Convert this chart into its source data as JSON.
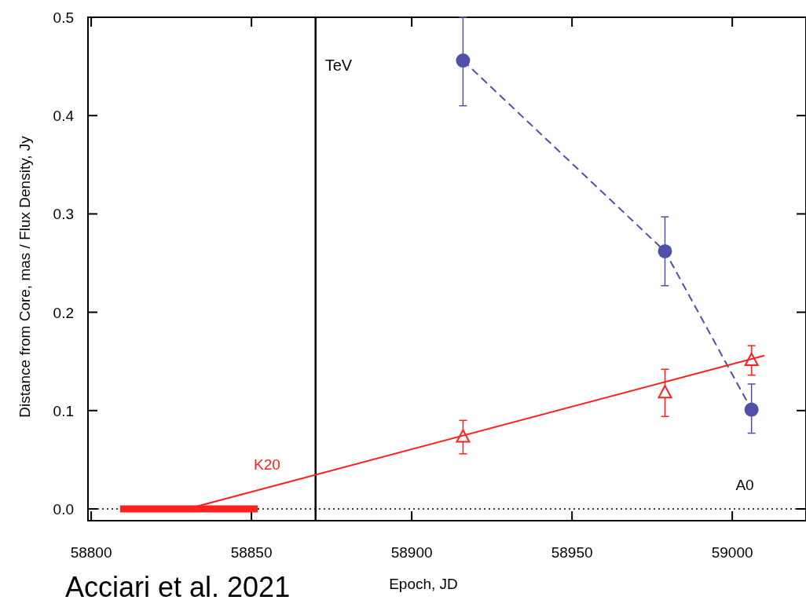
{
  "chart_data": {
    "type": "line",
    "xlabel": "Epoch, JD",
    "ylabel": "Distance from Core, mas / Flux Density, Jy",
    "xlim": [
      58799,
      59023
    ],
    "ylim": [
      -0.012,
      0.5
    ],
    "xticks": [
      58800,
      58850,
      58900,
      58950,
      59000
    ],
    "yticks": [
      {
        "value": 0,
        "label": "0.0"
      },
      {
        "value": 0.1,
        "label": "0.1"
      },
      {
        "value": 0.2,
        "label": "0.2"
      },
      {
        "value": 0.3,
        "label": "0.3"
      },
      {
        "value": 0.4,
        "label": "0.4"
      },
      {
        "value": 0.5,
        "label": "0.5"
      }
    ],
    "grid": false,
    "series": [
      {
        "type": "line",
        "color": "#5050a8",
        "marker": "circle",
        "line_style": "dashed",
        "x": [
          58916,
          58979,
          59006
        ],
        "values": [
          0.456,
          0.262,
          0.101
        ],
        "errors": [
          [
            0.41,
            0.5
          ],
          [
            0.227,
            0.297
          ],
          [
            0.077,
            0.127
          ]
        ]
      },
      {
        "type": "scatter",
        "color": "#ff2020",
        "marker": "triangle",
        "x": [
          58916,
          58979,
          59006
        ],
        "values": [
          0.073,
          0.118,
          0.151
        ],
        "errors": [
          [
            0.056,
            0.09
          ],
          [
            0.094,
            0.142
          ],
          [
            0.136,
            0.166
          ]
        ]
      },
      {
        "type": "line",
        "color": "#ff2020",
        "marker": "none",
        "line_style": "solid",
        "x": [
          58830,
          59010
        ],
        "values": [
          0,
          0.156
        ]
      },
      {
        "type": "line",
        "color": "#ff2020",
        "marker": "none",
        "line_style": "solid",
        "x": [
          58809,
          58852
        ],
        "values": [
          0,
          0
        ]
      }
    ],
    "ref_lines": [
      {
        "axis": "x",
        "value": 58870,
        "label": "TeV",
        "color": "#000000",
        "line_style": "solid"
      },
      {
        "axis": "y",
        "value": 0,
        "label": null,
        "color": "#000000",
        "line_style": "dotted"
      }
    ],
    "annotations": [
      "K20",
      "A0",
      "Acciari et al. 2021"
    ]
  }
}
